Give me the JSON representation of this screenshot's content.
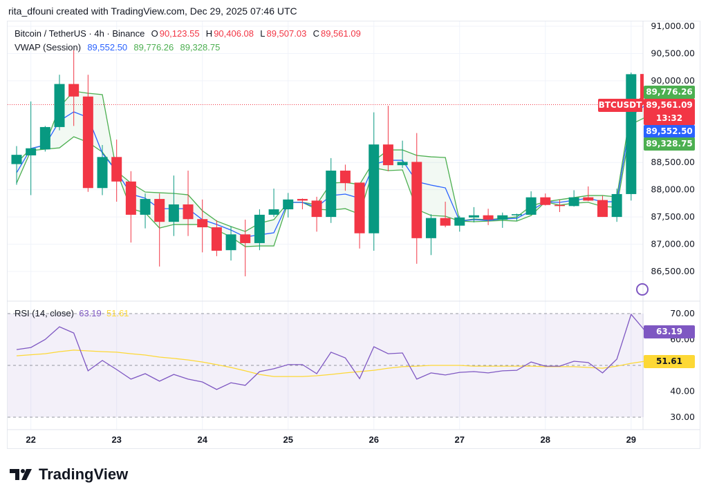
{
  "credit": "rita_dfouni created with TradingView.com, Dec 29, 2025 07:46 UTC",
  "legend": {
    "symbol": "Bitcoin / TetherUS · 4h · Binance",
    "o_label": "O",
    "o": "90,123.55",
    "h_label": "H",
    "h": "90,406.08",
    "l_label": "L",
    "l": "89,507.03",
    "c_label": "C",
    "c": "89,561.09",
    "vwap_title": "VWAP (Session)",
    "vwap": "89,552.50",
    "vwap_upper": "89,776.26",
    "vwap_lower": "89,328.75"
  },
  "rsi_legend": {
    "title": "RSI (14, close)",
    "rsi": "63.19",
    "ma": "51.61"
  },
  "price_labels": {
    "symbol": "BTCUSDT",
    "upper": "89,776.26",
    "last": "89,561.09",
    "countdown": "13:32",
    "vwap": "89,552.50",
    "lower": "89,328.75"
  },
  "rsi_labels": {
    "rsi": "63.19",
    "ma": "51.61"
  },
  "brand": "TradingView",
  "colors": {
    "up": "#089981",
    "down": "#f23645",
    "vwap": "#2962ff",
    "bands": "#4caf50",
    "rsi": "#7e57c2",
    "rsi_ma": "#fdd835"
  },
  "chart_data": [
    {
      "type": "candlestick",
      "title": "Bitcoin / TetherUS · 4h · Binance",
      "x_ticks": [
        "22",
        "23",
        "24",
        "25",
        "26",
        "27",
        "28",
        "29"
      ],
      "y_ticks": [
        "91,000.00",
        "90,500.00",
        "90,000.00",
        "88,500.00",
        "88,000.00",
        "87,500.00",
        "87,000.00",
        "86,500.00"
      ],
      "ylim": [
        86200,
        91200
      ],
      "grid": true,
      "candles_ohlc": [
        [
          88470,
          88800,
          88090,
          88640
        ],
        [
          88630,
          89620,
          87900,
          88760
        ],
        [
          88740,
          89170,
          88700,
          89150
        ],
        [
          89150,
          90110,
          89090,
          89940
        ],
        [
          89940,
          90560,
          89170,
          89710
        ],
        [
          89710,
          90110,
          87960,
          88030
        ],
        [
          88030,
          88820,
          87900,
          88600
        ],
        [
          88600,
          88920,
          87780,
          88150
        ],
        [
          88150,
          88340,
          87030,
          87540
        ],
        [
          87540,
          87930,
          87290,
          87830
        ],
        [
          87830,
          87930,
          86590,
          87410
        ],
        [
          87410,
          88260,
          87150,
          87730
        ],
        [
          87730,
          88350,
          87150,
          87460
        ],
        [
          87460,
          87820,
          86850,
          87310
        ],
        [
          87310,
          87440,
          86780,
          86880
        ],
        [
          86890,
          87330,
          86700,
          87180
        ],
        [
          87180,
          87450,
          86410,
          87020
        ],
        [
          87020,
          87640,
          86890,
          87540
        ],
        [
          87540,
          88020,
          87500,
          87640
        ],
        [
          87640,
          87940,
          87490,
          87820
        ],
        [
          87830,
          87840,
          87640,
          87800
        ],
        [
          87800,
          87870,
          87230,
          87500
        ],
        [
          87500,
          88580,
          87390,
          88350
        ],
        [
          88350,
          88460,
          87980,
          88120
        ],
        [
          88130,
          88130,
          86920,
          87200
        ],
        [
          87200,
          89420,
          86880,
          88830
        ],
        [
          88830,
          89540,
          88340,
          88450
        ],
        [
          88450,
          88900,
          88400,
          88510
        ],
        [
          88510,
          89040,
          86640,
          87110
        ],
        [
          87110,
          87550,
          86800,
          87480
        ],
        [
          87480,
          87780,
          87310,
          87340
        ],
        [
          87340,
          87520,
          87230,
          87490
        ],
        [
          87490,
          87680,
          87400,
          87530
        ],
        [
          87530,
          87650,
          87350,
          87450
        ],
        [
          87450,
          87580,
          87300,
          87530
        ],
        [
          87530,
          87560,
          87430,
          87550
        ],
        [
          87540,
          87970,
          87540,
          87860
        ],
        [
          87860,
          87930,
          87710,
          87720
        ],
        [
          87720,
          87820,
          87590,
          87700
        ],
        [
          87700,
          87990,
          87690,
          87860
        ],
        [
          87860,
          88060,
          87790,
          87800
        ],
        [
          87810,
          87890,
          87500,
          87500
        ],
        [
          87500,
          88020,
          87410,
          87920
        ],
        [
          87920,
          90150,
          87800,
          90120
        ],
        [
          90123.55,
          90406.08,
          89507.03,
          89561.09
        ]
      ],
      "series": [
        {
          "name": "VWAP",
          "values": [
            88312,
            88756,
            88819,
            89263,
            89428,
            89326,
            88667,
            88337,
            87919,
            87843,
            87652,
            87652,
            87652,
            87450,
            87361,
            87259,
            87133,
            87171,
            87209,
            87767,
            87767,
            87678,
            87893,
            87919,
            87843,
            88464,
            88540,
            88540,
            88147,
            88084,
            88033,
            87424,
            87450,
            87437,
            87462,
            87475,
            87614,
            87779,
            87767,
            87805,
            87843,
            87779,
            87779,
            89357,
            89552.5
          ]
        },
        {
          "name": "Upper Band",
          "values": [
            88489,
            88756,
            88819,
            89516,
            89808,
            89770,
            89745,
            88337,
            88122,
            87957,
            87944,
            87932,
            87906,
            87614,
            87424,
            87323,
            87234,
            87386,
            87450,
            87767,
            87767,
            87729,
            88122,
            88134,
            88096,
            88527,
            88730,
            88730,
            88629,
            88603,
            88591,
            87424,
            87462,
            87450,
            87475,
            87500,
            87703,
            87779,
            87817,
            87855,
            87893,
            87893,
            87868,
            89500,
            89776.26
          ]
        },
        {
          "name": "Lower Band",
          "values": [
            88122,
            88718,
            88743,
            88768,
            88971,
            88870,
            88692,
            88337,
            87652,
            87576,
            87297,
            87361,
            87361,
            87361,
            87259,
            87133,
            86955,
            86968,
            86968,
            87767,
            87767,
            87640,
            87627,
            87652,
            87551,
            88401,
            88350,
            88363,
            87640,
            87526,
            87513,
            87424,
            87412,
            87424,
            87437,
            87424,
            87526,
            87779,
            87716,
            87754,
            87767,
            87691,
            87678,
            89200,
            89328.75
          ]
        }
      ],
      "last_price": 89561.09
    },
    {
      "type": "line",
      "title": "RSI (14, close)",
      "y_ticks": [
        "70.00",
        "60.00",
        "40.00",
        "30.00"
      ],
      "ylim": [
        27,
        74
      ],
      "bands": [
        70,
        50,
        30
      ],
      "series": [
        {
          "name": "RSI",
          "values": [
            56.1,
            56.9,
            60,
            64.9,
            62.5,
            47.9,
            51.9,
            48.4,
            44.7,
            46.8,
            43.9,
            46.5,
            44.7,
            43.6,
            40.7,
            43.3,
            42.3,
            47.6,
            48.7,
            50.3,
            50.3,
            46.8,
            55.1,
            52.9,
            44.9,
            57.2,
            54.5,
            54.8,
            44.7,
            47.1,
            46.3,
            47.3,
            47.6,
            47.1,
            47.9,
            48.1,
            51.3,
            49.7,
            49.7,
            51.6,
            51.1,
            47.1,
            52.4,
            69.7,
            63.19
          ]
        },
        {
          "name": "RSI MA",
          "values": [
            53.7,
            54.1,
            54.5,
            55.3,
            55.9,
            55.6,
            55.3,
            55.1,
            54.5,
            54,
            53.2,
            52.7,
            52.1,
            51.3,
            50.3,
            49.2,
            47.9,
            46.5,
            45.7,
            45.7,
            45.7,
            46,
            46.5,
            47.1,
            47.6,
            48.1,
            48.9,
            49.5,
            49.7,
            50,
            50,
            50,
            49.7,
            49.7,
            49.7,
            49.7,
            49.7,
            49.5,
            49.5,
            49.5,
            49.2,
            48.9,
            49.7,
            50.8,
            51.61
          ]
        }
      ]
    }
  ]
}
